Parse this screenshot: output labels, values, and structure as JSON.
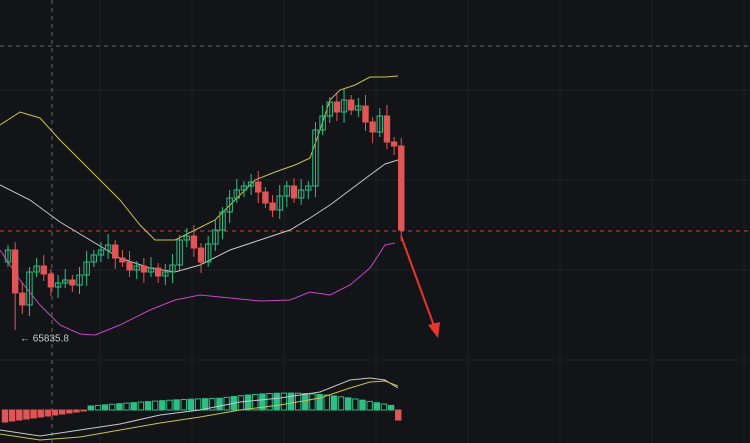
{
  "low_label": "← 65835.8"
}
